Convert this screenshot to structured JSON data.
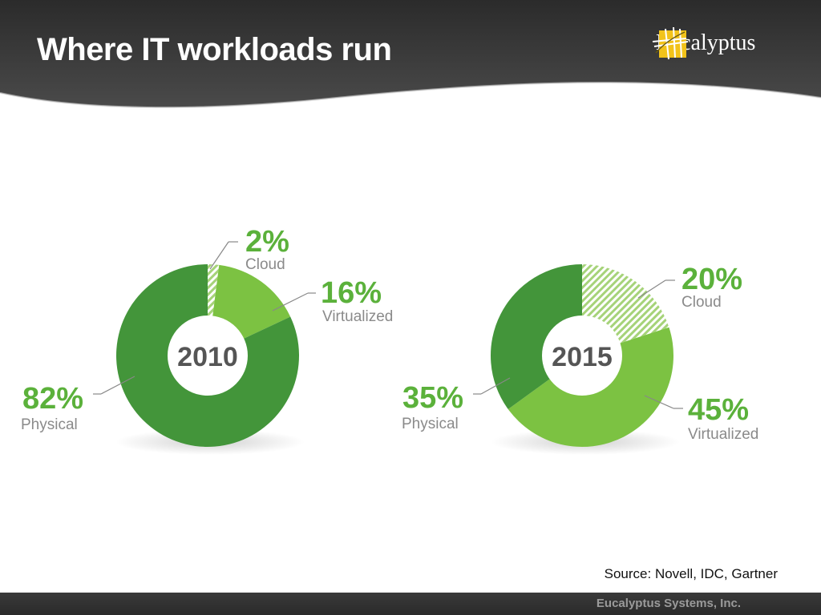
{
  "slide": {
    "title": "Where IT workloads run",
    "logo_text": "Eucalyptus",
    "source": "Source: Novell, IDC, Gartner",
    "footer": "Eucalyptus Systems, Inc."
  },
  "colors": {
    "physical": "#43953a",
    "virtualized": "#7cc242",
    "cloud_stripe": "#a6d379",
    "percent_text": "#5bb13b",
    "label_text": "#8a8a8a"
  },
  "chart_data": [
    {
      "type": "pie",
      "title": "2010",
      "slices": [
        {
          "label": "Cloud",
          "value": 2,
          "display": "2%"
        },
        {
          "label": "Virtualized",
          "value": 16,
          "display": "16%"
        },
        {
          "label": "Physical",
          "value": 82,
          "display": "82%"
        }
      ]
    },
    {
      "type": "pie",
      "title": "2015",
      "slices": [
        {
          "label": "Cloud",
          "value": 20,
          "display": "20%"
        },
        {
          "label": "Virtualized",
          "value": 45,
          "display": "45%"
        },
        {
          "label": "Physical",
          "value": 35,
          "display": "35%"
        }
      ]
    }
  ]
}
